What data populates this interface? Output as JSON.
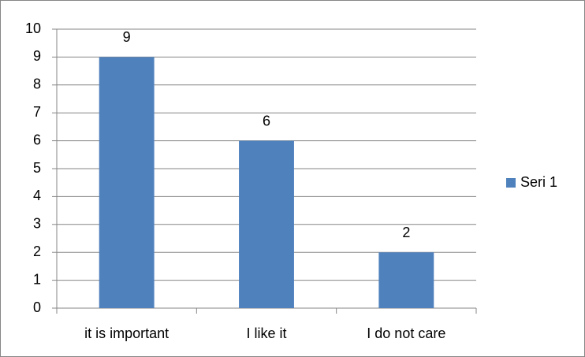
{
  "chart_data": {
    "type": "bar",
    "categories": [
      "it is important",
      "I like it",
      "I do not care"
    ],
    "series": [
      {
        "name": "Seri 1",
        "color": "#4f81bd",
        "values": [
          9,
          6,
          2
        ]
      }
    ],
    "ylim": [
      0,
      10
    ],
    "yticks": [
      0,
      1,
      2,
      3,
      4,
      5,
      6,
      7,
      8,
      9,
      10
    ],
    "grid": true,
    "legend": "right",
    "data_labels": true
  }
}
